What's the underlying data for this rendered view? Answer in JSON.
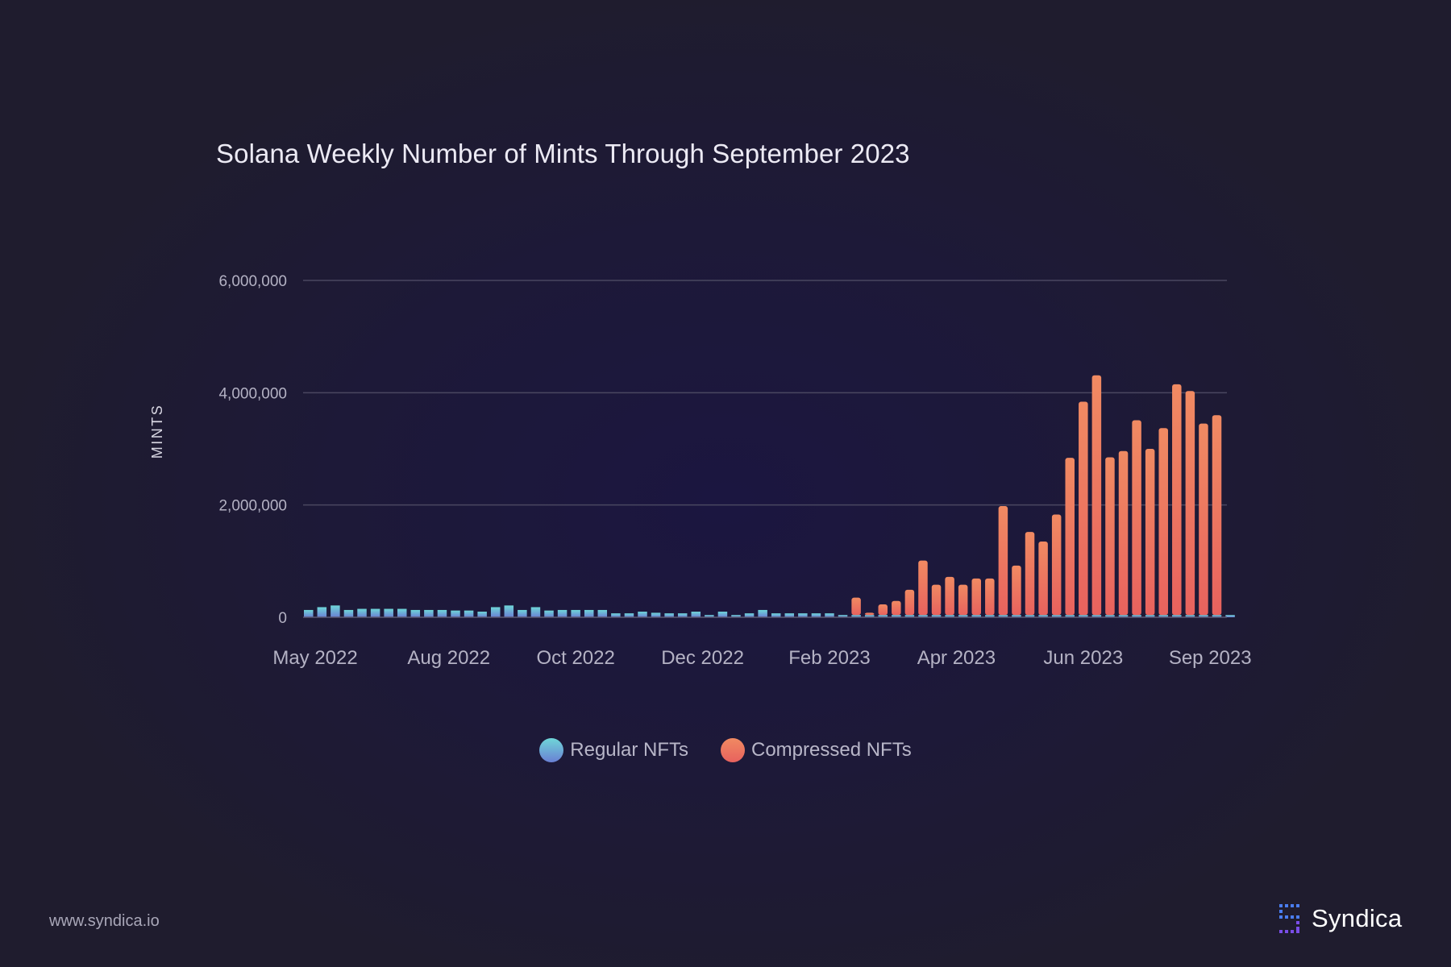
{
  "chart_data": {
    "type": "bar",
    "title": "Solana Weekly Number of Mints Through September 2023",
    "ylabel": "MINTS",
    "xlabel": "",
    "ylim": [
      0,
      6000000
    ],
    "yticks": [
      0,
      2000000,
      4000000,
      6000000
    ],
    "ytick_labels": [
      "0",
      "2,000,000",
      "4,000,000",
      "6,000,000"
    ],
    "xtick_labels": [
      "May 2022",
      "Aug 2022",
      "Oct 2022",
      "Dec 2022",
      "Feb 2023",
      "Apr 2023",
      "Jun 2023",
      "Sep 2023"
    ],
    "xtick_bar_index": [
      0.5,
      10.5,
      20,
      29.5,
      39,
      48.5,
      58,
      67.5
    ],
    "grid": true,
    "stacked": true,
    "legend_position": "bottom-center",
    "series": [
      {
        "name": "Regular NFTs",
        "color_top": "#6fd6d8",
        "color_bottom": "#6a80d4",
        "values": [
          130000,
          180000,
          210000,
          130000,
          150000,
          150000,
          150000,
          150000,
          130000,
          130000,
          130000,
          120000,
          120000,
          100000,
          180000,
          210000,
          130000,
          180000,
          120000,
          130000,
          130000,
          130000,
          130000,
          70000,
          70000,
          100000,
          80000,
          70000,
          70000,
          100000,
          40000,
          100000,
          40000,
          70000,
          130000,
          70000,
          70000,
          70000,
          70000,
          70000,
          40000,
          40000,
          40000,
          40000,
          40000,
          40000,
          40000,
          40000,
          40000,
          40000,
          40000,
          40000,
          40000,
          40000,
          40000,
          40000,
          40000,
          40000,
          40000,
          40000,
          40000,
          40000,
          40000,
          40000,
          40000,
          40000,
          40000,
          40000,
          40000,
          40000
        ]
      },
      {
        "name": "Compressed NFTs",
        "color_top": "#f08a62",
        "color_bottom": "#e8625e",
        "values": [
          0,
          0,
          0,
          0,
          0,
          0,
          0,
          0,
          0,
          0,
          0,
          0,
          0,
          0,
          0,
          0,
          0,
          0,
          0,
          0,
          0,
          0,
          0,
          0,
          0,
          0,
          0,
          0,
          0,
          0,
          0,
          0,
          0,
          0,
          0,
          0,
          0,
          0,
          0,
          0,
          0,
          310000,
          40000,
          190000,
          250000,
          450000,
          970000,
          540000,
          680000,
          540000,
          650000,
          650000,
          1940000,
          880000,
          1480000,
          1310000,
          1790000,
          2800000,
          3800000,
          4270000,
          2810000,
          2920000,
          3470000,
          2960000,
          3330000,
          4110000,
          3990000,
          3410000,
          3560000,
          0
        ]
      }
    ]
  },
  "footer": {
    "url": "www.syndica.io"
  },
  "brand": {
    "name": "Syndica",
    "logo_icon": "syndica-logo-icon"
  }
}
